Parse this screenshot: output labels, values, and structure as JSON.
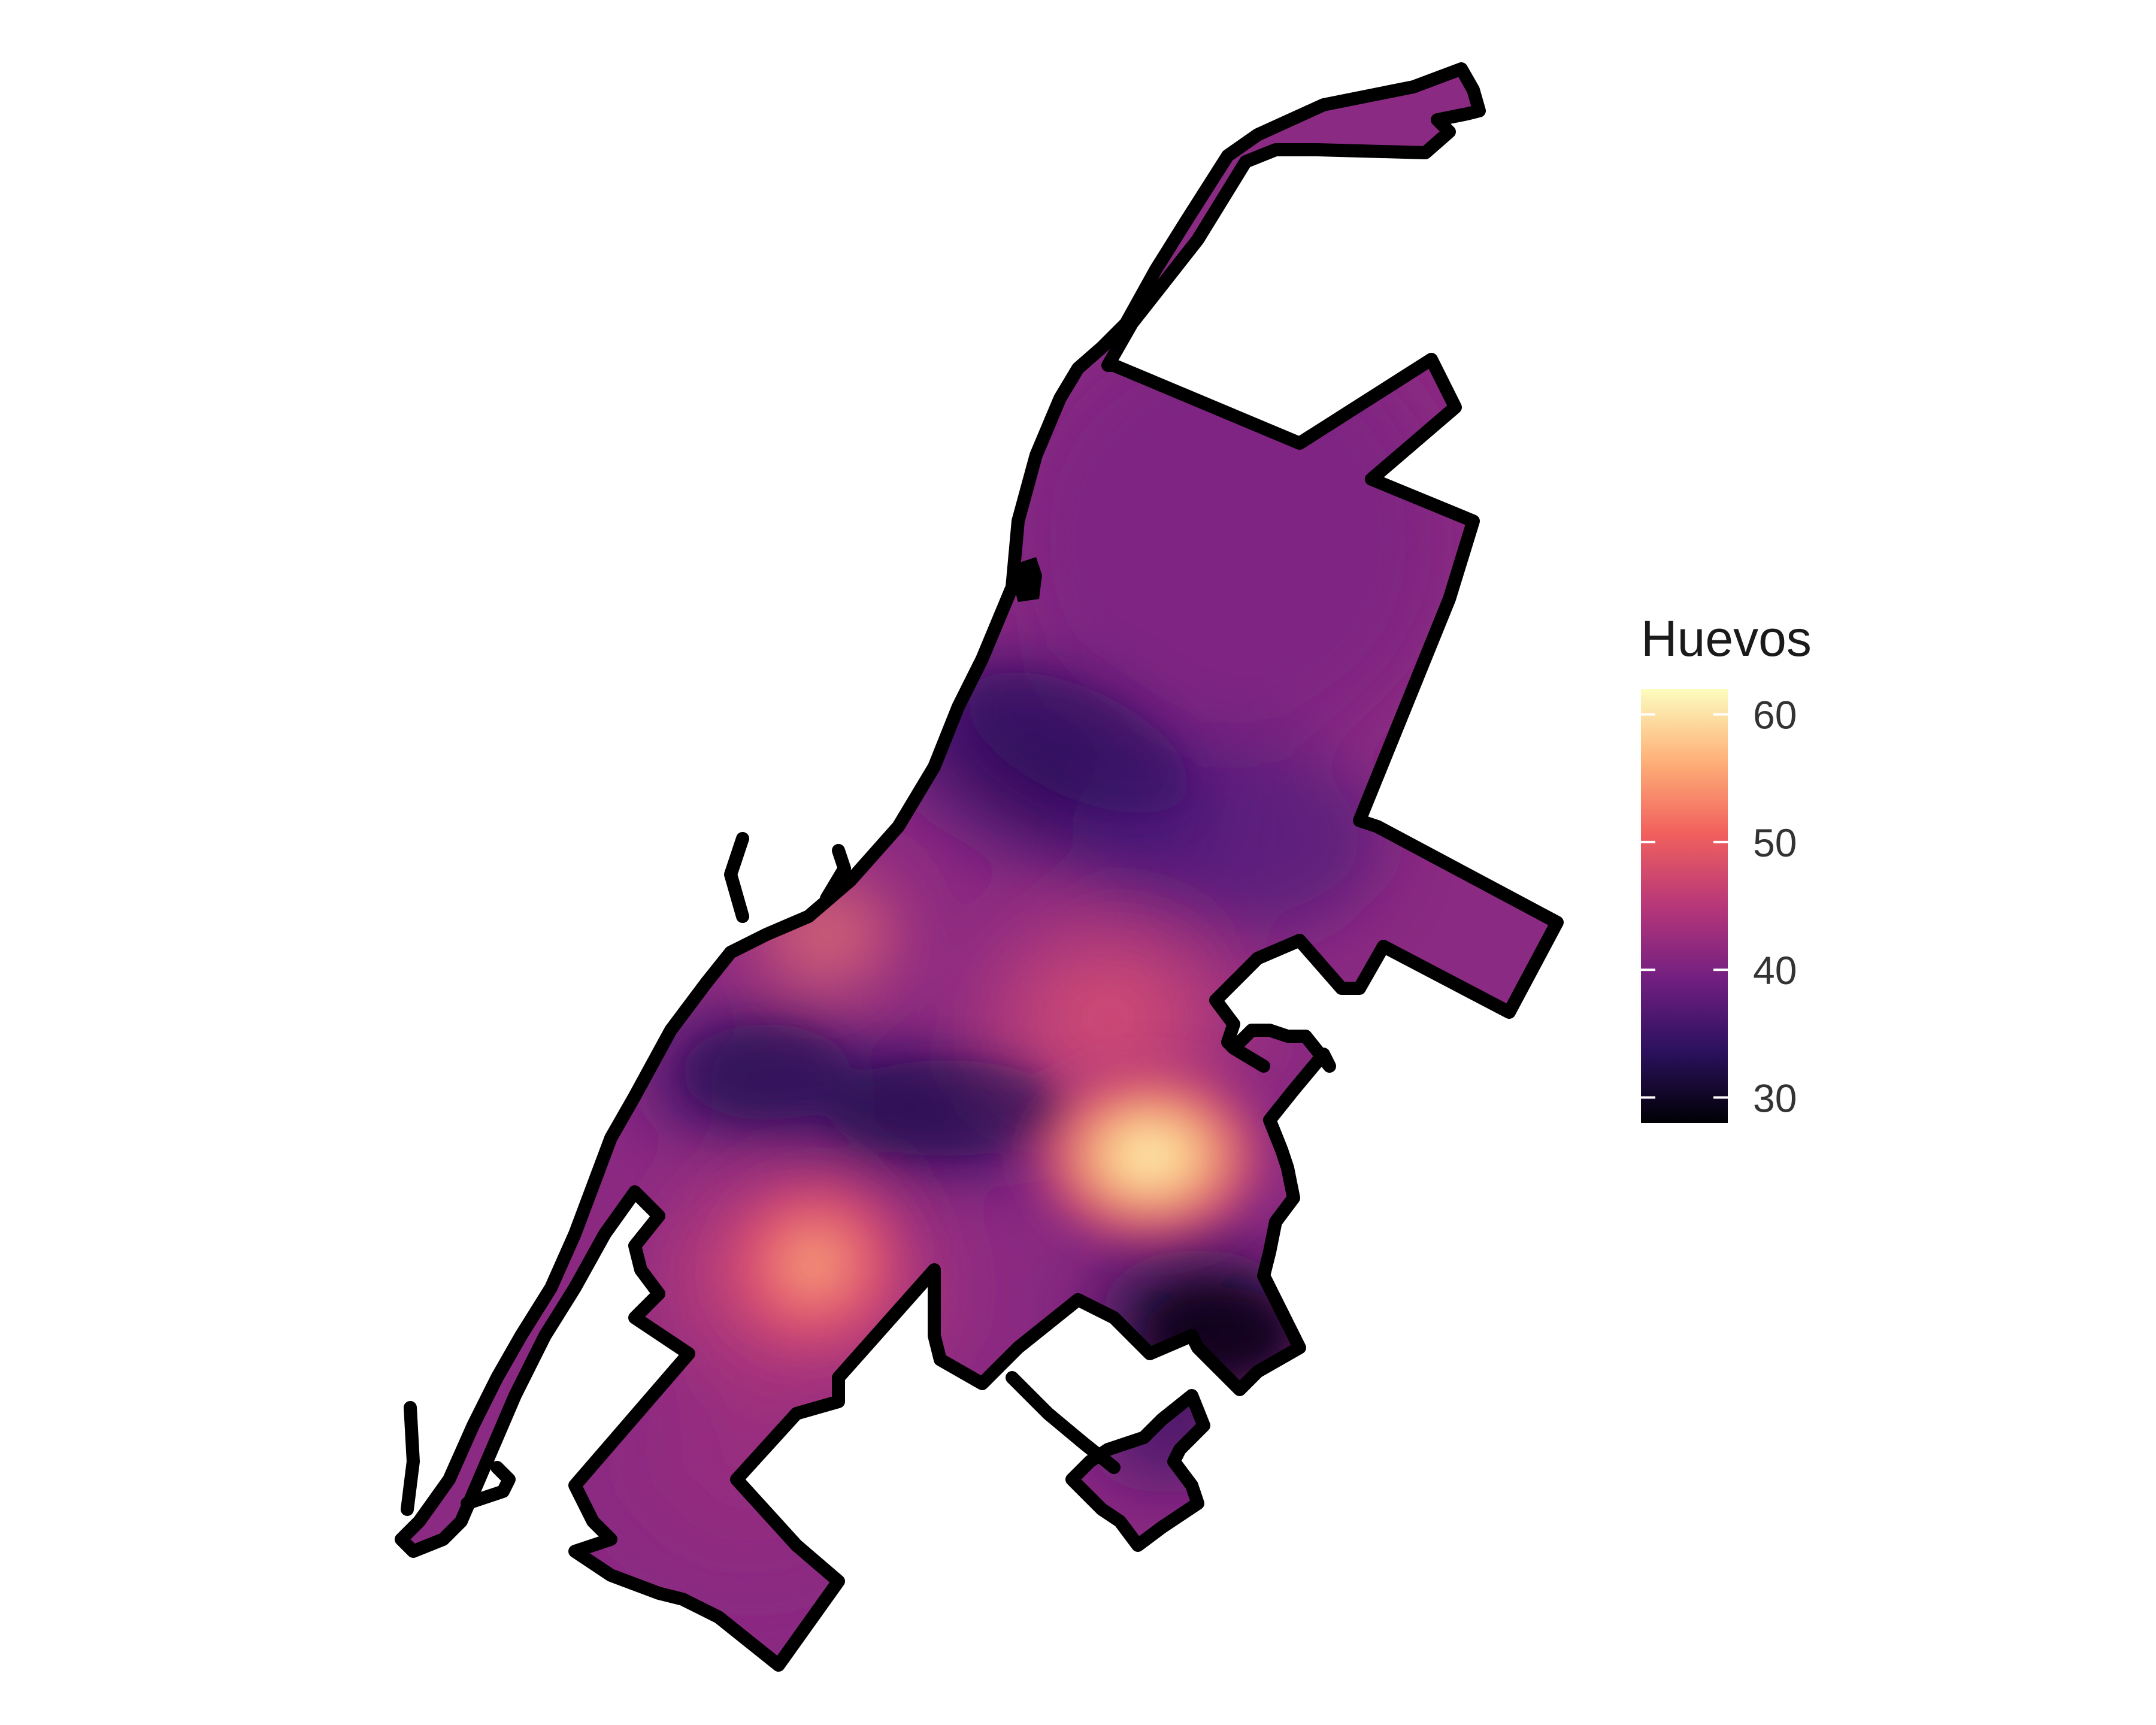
{
  "map": {
    "fill_field": "Huevos",
    "outline_color": "#000000",
    "background_color": "#ffffff"
  },
  "legend": {
    "title": "Huevos",
    "range": [
      28,
      62
    ],
    "ticks": [
      {
        "value": 30,
        "label": "30"
      },
      {
        "value": 40,
        "label": "40"
      },
      {
        "value": 50,
        "label": "50"
      },
      {
        "value": 60,
        "label": "60"
      }
    ],
    "palette": [
      "#000004",
      "#2c115f",
      "#721f81",
      "#b73779",
      "#f1605d",
      "#feb078",
      "#fcfdbf"
    ]
  }
}
